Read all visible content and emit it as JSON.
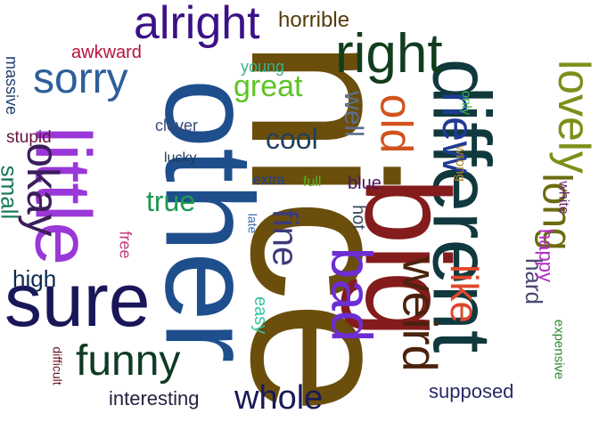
{
  "words": [
    {
      "text": "nice",
      "color": "#6b4e0b",
      "rotated": true
    },
    {
      "text": "other",
      "color": "#1e4f8c",
      "rotated": true
    },
    {
      "text": "different",
      "color": "#10393e",
      "rotated": true
    },
    {
      "text": "big",
      "color": "#841c1c",
      "rotated": true
    },
    {
      "text": "little",
      "color": "#9a37d8",
      "rotated": true
    },
    {
      "text": "sure",
      "color": "#19175a",
      "rotated": false
    },
    {
      "text": "bad",
      "color": "#6c2dd2",
      "rotated": true
    },
    {
      "text": "right",
      "color": "#123d1d",
      "rotated": false
    },
    {
      "text": "weird",
      "color": "#4b220d",
      "rotated": true
    },
    {
      "text": "alright",
      "color": "#3c1186",
      "rotated": false
    },
    {
      "text": "okay",
      "color": "#3c1d5a",
      "rotated": true
    },
    {
      "text": "lovely",
      "color": "#7e8e19",
      "rotated": true
    },
    {
      "text": "new",
      "color": "#1e3a96",
      "rotated": true
    },
    {
      "text": "old",
      "color": "#d1541e",
      "rotated": true
    },
    {
      "text": "sorry",
      "color": "#2d5e9a",
      "rotated": false
    },
    {
      "text": "funny",
      "color": "#0f3a24",
      "rotated": false
    },
    {
      "text": "long",
      "color": "#6d6c11",
      "rotated": true
    },
    {
      "text": "like",
      "color": "#e0472c",
      "rotated": true
    },
    {
      "text": "whole",
      "color": "#1a1a58",
      "rotated": false
    },
    {
      "text": "fine",
      "color": "#3b3b7a",
      "rotated": true
    },
    {
      "text": "great",
      "color": "#5cc423",
      "rotated": false
    },
    {
      "text": "cool",
      "color": "#1f3f5f",
      "rotated": false
    },
    {
      "text": "true",
      "color": "#1c9a52",
      "rotated": false
    },
    {
      "text": "well",
      "color": "#5c6e8c",
      "rotated": true
    },
    {
      "text": "horrible",
      "color": "#553b0c",
      "rotated": false
    },
    {
      "text": "small",
      "color": "#1a7a5a",
      "rotated": true
    },
    {
      "text": "high",
      "color": "#0c2a50",
      "rotated": false
    },
    {
      "text": "hard",
      "color": "#4a4a72",
      "rotated": true
    },
    {
      "text": "interesting",
      "color": "#23233f",
      "rotated": false
    },
    {
      "text": "supposed",
      "color": "#2a2a66",
      "rotated": false
    },
    {
      "text": "happy",
      "color": "#b52ac8",
      "rotated": true
    },
    {
      "text": "stupid",
      "color": "#6a1440",
      "rotated": false
    },
    {
      "text": "awkward",
      "color": "#b8123a",
      "rotated": false
    },
    {
      "text": "massive",
      "color": "#1e3f6f",
      "rotated": true
    },
    {
      "text": "young",
      "color": "#3ab08a",
      "rotated": false
    },
    {
      "text": "clever",
      "color": "#3b4b7a",
      "rotated": false
    },
    {
      "text": "lucky",
      "color": "#1e3a5a",
      "rotated": false
    },
    {
      "text": "extra",
      "color": "#1a3f9a",
      "rotated": false
    },
    {
      "text": "full",
      "color": "#52b61a",
      "rotated": false
    },
    {
      "text": "blue",
      "color": "#4a1466",
      "rotated": false
    },
    {
      "text": "hot",
      "color": "#3a4a5a",
      "rotated": true
    },
    {
      "text": "late",
      "color": "#3b6ab0",
      "rotated": true
    },
    {
      "text": "free",
      "color": "#c4377a",
      "rotated": true
    },
    {
      "text": "easy",
      "color": "#35c4a0",
      "rotated": true
    },
    {
      "text": "wrong",
      "color": "#b2862a",
      "rotated": true
    },
    {
      "text": "only",
      "color": "#3ab84a",
      "rotated": true
    },
    {
      "text": "white",
      "color": "#6a2a66",
      "rotated": true
    },
    {
      "text": "expensive",
      "color": "#2e8a36",
      "rotated": true
    },
    {
      "text": "difficult",
      "color": "#6a1422",
      "rotated": true
    }
  ]
}
